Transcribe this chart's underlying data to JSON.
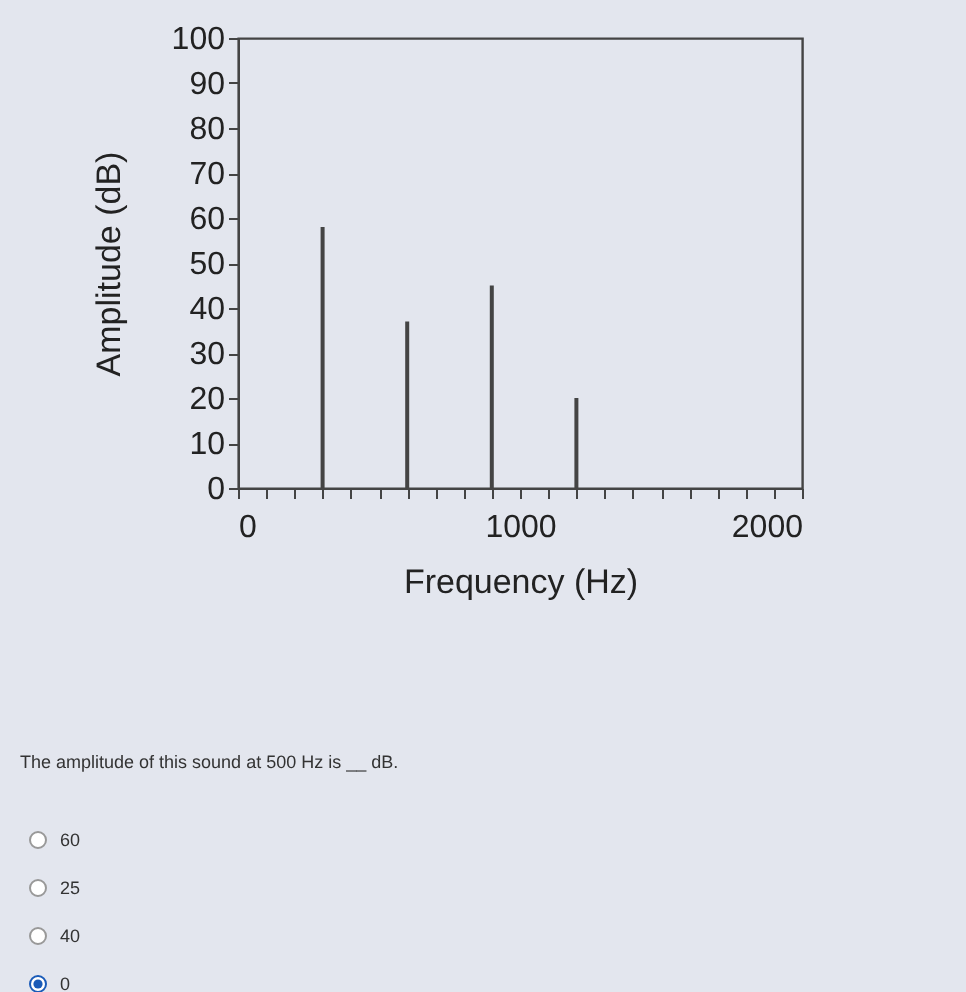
{
  "chart_data": {
    "type": "bar",
    "xlabel": "Frequency (Hz)",
    "ylabel": "Amplitude (dB)",
    "x": [
      300,
      600,
      900,
      1200
    ],
    "values": [
      58,
      37,
      45,
      20
    ],
    "color": "#444444",
    "xlim": [
      0,
      2000
    ],
    "ylim": [
      0,
      100
    ],
    "xticks": [
      0,
      {
        "value": 100,
        "label": null
      },
      {
        "value": 200,
        "label": null
      },
      {
        "value": 300,
        "label": null
      },
      {
        "value": 400,
        "label": null
      },
      {
        "value": 500,
        "label": null
      },
      {
        "value": 600,
        "label": null
      },
      {
        "value": 700,
        "label": null
      },
      {
        "value": 800,
        "label": null
      },
      {
        "value": 900,
        "label": null
      },
      1000,
      {
        "value": 1100,
        "label": null
      },
      {
        "value": 1200,
        "label": null
      },
      {
        "value": 1300,
        "label": null
      },
      {
        "value": 1400,
        "label": null
      },
      {
        "value": 1500,
        "label": null
      },
      {
        "value": 1600,
        "label": null
      },
      {
        "value": 1700,
        "label": null
      },
      {
        "value": 1800,
        "label": null
      },
      {
        "value": 1900,
        "label": null
      },
      2000
    ],
    "yticks": [
      0,
      10,
      20,
      30,
      40,
      50,
      60,
      70,
      80,
      90,
      100
    ],
    "grid": false,
    "annotations": [
      "The amplitude of this sound at 500 Hz is __ dB.",
      "60",
      "25",
      "40",
      "0"
    ]
  }
}
